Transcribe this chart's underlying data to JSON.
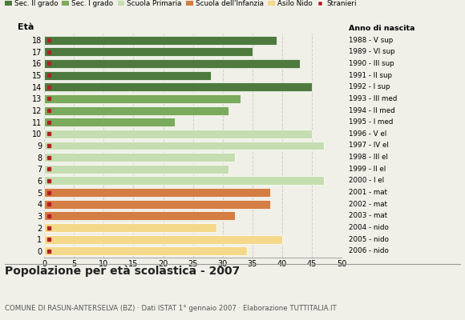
{
  "ages": [
    18,
    17,
    16,
    15,
    14,
    13,
    12,
    11,
    10,
    9,
    8,
    7,
    6,
    5,
    4,
    3,
    2,
    1,
    0
  ],
  "values": [
    39,
    35,
    43,
    28,
    45,
    33,
    31,
    22,
    45,
    47,
    32,
    31,
    47,
    38,
    38,
    32,
    29,
    40,
    34
  ],
  "bar_colors": [
    "#4e7a3e",
    "#4e7a3e",
    "#4e7a3e",
    "#4e7a3e",
    "#4e7a3e",
    "#7aaa5c",
    "#7aaa5c",
    "#7aaa5c",
    "#c5ddb0",
    "#c5ddb0",
    "#c5ddb0",
    "#c5ddb0",
    "#c5ddb0",
    "#d47d44",
    "#d47d44",
    "#d47d44",
    "#f5d98a",
    "#f5d98a",
    "#f5d98a"
  ],
  "stranieri_color": "#b22222",
  "right_labels": [
    "1988 - V sup",
    "1989 - VI sup",
    "1990 - III sup",
    "1991 - II sup",
    "1992 - I sup",
    "1993 - III med",
    "1994 - II med",
    "1995 - I med",
    "1996 - V el",
    "1997 - IV el",
    "1998 - III el",
    "1999 - II el",
    "2000 - I el",
    "2001 - mat",
    "2002 - mat",
    "2003 - mat",
    "2004 - nido",
    "2005 - nido",
    "2006 - nido"
  ],
  "legend_labels": [
    "Sec. II grado",
    "Sec. I grado",
    "Scuola Primaria",
    "Scuola dell'Infanzia",
    "Asilo Nido",
    "Stranieri"
  ],
  "legend_colors": [
    "#4e7a3e",
    "#7aaa5c",
    "#c5ddb0",
    "#d47d44",
    "#f5d98a",
    "#b22222"
  ],
  "title": "Popolazione per età scolastica - 2007",
  "subtitle": "COMUNE DI RASUN-ANTERSELVA (BZ) · Dati ISTAT 1° gennaio 2007 · Elaborazione TUTTITALIA.IT",
  "eta_label": "Età",
  "anno_label": "Anno di nascita",
  "xlim_max": 50,
  "xticks": [
    0,
    5,
    10,
    15,
    20,
    25,
    30,
    35,
    40,
    45,
    50
  ],
  "background_color": "#f0f0e8",
  "grid_color": "#cccccc",
  "bar_height": 0.75
}
